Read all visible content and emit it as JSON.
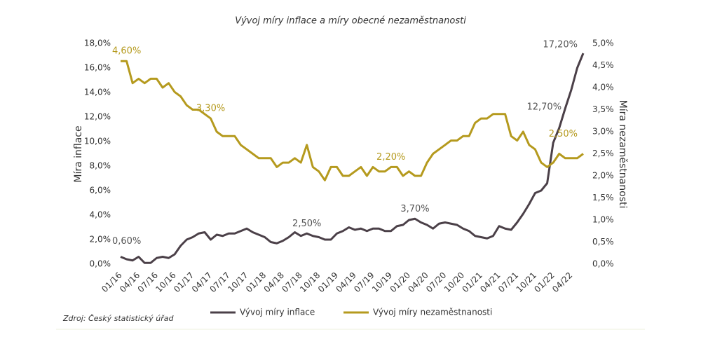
{
  "chart_data": {
    "type": "line",
    "title": "Vývoj míry inflace a míry obecné nezaměstnanosti",
    "source": "Zdroj: Český statistický úřad",
    "y_label": "Míra inflace",
    "y2_label": "Míra nezaměstnanosti",
    "categories": [
      "01/16",
      null,
      null,
      "04/16",
      null,
      null,
      "07/16",
      null,
      null,
      "10/16",
      null,
      null,
      "01/17",
      null,
      null,
      "04/17",
      null,
      null,
      "07/17",
      null,
      null,
      "10/17",
      null,
      null,
      "01/18",
      null,
      null,
      "04/18",
      null,
      null,
      "07/18",
      null,
      null,
      "10/18",
      null,
      null,
      "01/19",
      null,
      null,
      "04/19",
      null,
      null,
      "07/19",
      null,
      null,
      "10/19",
      null,
      null,
      "01/20",
      null,
      null,
      "04/20",
      null,
      null,
      "07/20",
      null,
      null,
      "10/20",
      null,
      null,
      "01/21",
      null,
      null,
      "04/21",
      null,
      null,
      "07/21",
      null,
      null,
      "10/21",
      null,
      null,
      "01/22",
      null,
      null,
      "04/22",
      null,
      null
    ],
    "series": [
      {
        "name": "Vývoj míry inflace",
        "color": "#4b4048",
        "axis": "y",
        "values": [
          0.6,
          0.4,
          0.3,
          0.6,
          0.1,
          0.1,
          0.5,
          0.6,
          0.5,
          0.8,
          1.5,
          2.0,
          2.2,
          2.5,
          2.6,
          2.0,
          2.4,
          2.3,
          2.5,
          2.5,
          2.7,
          2.9,
          2.6,
          2.4,
          2.2,
          1.8,
          1.7,
          1.9,
          2.2,
          2.6,
          2.3,
          2.5,
          2.3,
          2.2,
          2.0,
          2.0,
          2.5,
          2.7,
          3.0,
          2.8,
          2.9,
          2.7,
          2.9,
          2.9,
          2.7,
          2.7,
          3.1,
          3.2,
          3.6,
          3.7,
          3.4,
          3.2,
          2.9,
          3.3,
          3.4,
          3.3,
          3.2,
          2.9,
          2.7,
          2.3,
          2.2,
          2.1,
          2.3,
          3.1,
          2.9,
          2.8,
          3.4,
          4.1,
          4.9,
          5.8,
          6.0,
          6.6,
          9.9,
          11.1,
          12.7,
          14.2,
          16.0,
          17.2
        ]
      },
      {
        "name": "Vývoj míry nezaměstnanosti",
        "color": "#b59a1e",
        "axis": "y2",
        "values": [
          4.6,
          4.6,
          4.1,
          4.2,
          4.1,
          4.2,
          4.2,
          4.0,
          4.1,
          3.9,
          3.8,
          3.6,
          3.5,
          3.5,
          3.4,
          3.3,
          3.0,
          2.9,
          2.9,
          2.9,
          2.7,
          2.6,
          2.5,
          2.4,
          2.4,
          2.4,
          2.2,
          2.3,
          2.3,
          2.4,
          2.3,
          2.7,
          2.2,
          2.1,
          1.9,
          2.2,
          2.2,
          2.0,
          2.0,
          2.1,
          2.2,
          2.0,
          2.2,
          2.1,
          2.1,
          2.2,
          2.2,
          2.0,
          2.1,
          2.0,
          2.0,
          2.3,
          2.5,
          2.6,
          2.7,
          2.8,
          2.8,
          2.9,
          2.9,
          3.2,
          3.3,
          3.3,
          3.4,
          3.4,
          3.4,
          2.9,
          2.8,
          3.0,
          2.7,
          2.6,
          2.3,
          2.2,
          2.3,
          2.5,
          2.4,
          2.4,
          2.4,
          2.5
        ]
      }
    ],
    "annotations": [
      {
        "label": "0,60%",
        "series": 0,
        "index": 0
      },
      {
        "label": "2,50%",
        "series": 0,
        "index": 31
      },
      {
        "label": "3,70%",
        "series": 0,
        "index": 49
      },
      {
        "label": "12,70%",
        "series": 0,
        "index": 74
      },
      {
        "label": "17,20%",
        "series": 0,
        "index": 77
      },
      {
        "label": "4,60%",
        "series": 1,
        "index": 0
      },
      {
        "label": "3,30%",
        "series": 1,
        "index": 15
      },
      {
        "label": "2,20%",
        "series": 1,
        "index": 45
      },
      {
        "label": "2,50%",
        "series": 1,
        "index": 77
      }
    ],
    "ylim": [
      0,
      18
    ],
    "yticks": [
      {
        "value": 0,
        "label": "0,0%"
      },
      {
        "value": 2,
        "label": "2,0%"
      },
      {
        "value": 4,
        "label": "4,0%"
      },
      {
        "value": 6,
        "label": "6,0%"
      },
      {
        "value": 8,
        "label": "8,0%"
      },
      {
        "value": 10,
        "label": "10,0%"
      },
      {
        "value": 12,
        "label": "12,0%"
      },
      {
        "value": 14,
        "label": "14,0%"
      },
      {
        "value": 16,
        "label": "16,0%"
      },
      {
        "value": 18,
        "label": "18,0%"
      }
    ],
    "y2lim": [
      0,
      5
    ],
    "y2ticks": [
      {
        "value": 0,
        "label": "0,0%"
      },
      {
        "value": 0.5,
        "label": "0,5%"
      },
      {
        "value": 1,
        "label": "1,0%"
      },
      {
        "value": 1.5,
        "label": "1,5%"
      },
      {
        "value": 2,
        "label": "2,0%"
      },
      {
        "value": 2.5,
        "label": "2,5%"
      },
      {
        "value": 3,
        "label": "3,0%"
      },
      {
        "value": 3.5,
        "label": "3,5%"
      },
      {
        "value": 4,
        "label": "4,0%"
      },
      {
        "value": 4.5,
        "label": "4,5%"
      },
      {
        "value": 5,
        "label": "5,0%"
      }
    ],
    "legend": "bottom"
  }
}
